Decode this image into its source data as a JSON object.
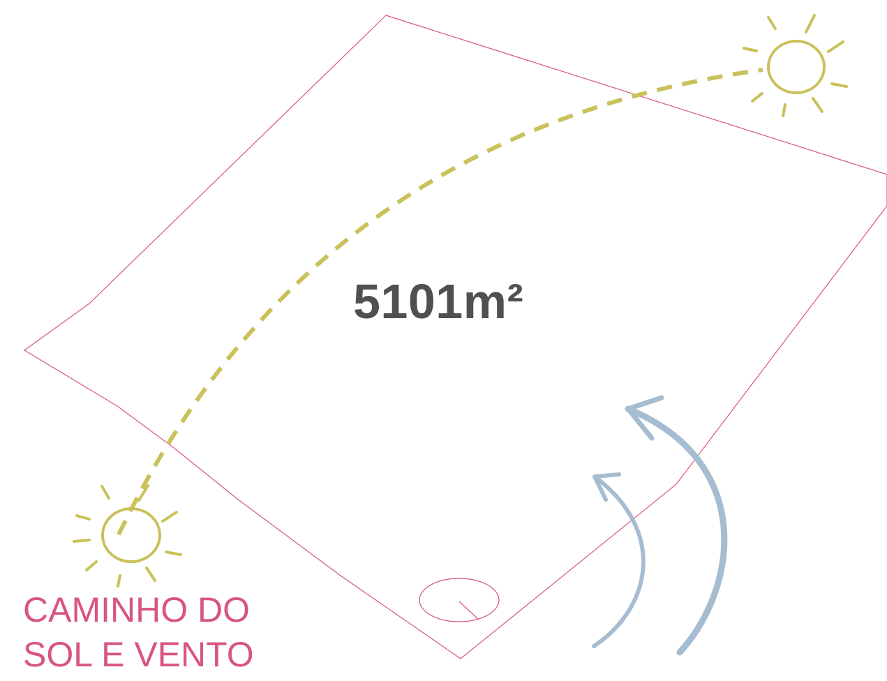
{
  "colors": {
    "boundary": "#d8557f",
    "sun": "#c9c15a",
    "wind": "#a6bcd1",
    "area_text": "#505050",
    "caption_text": "#d8557f"
  },
  "plot": {
    "area_label": "5101m²"
  },
  "caption": {
    "line1": "CAMINHO DO",
    "line2": "SOL E VENTO"
  },
  "icons": {
    "sunrise": "sun-icon",
    "sunset": "sun-icon",
    "wind": "curved-arrow-icon",
    "compass": "compass-icon"
  }
}
